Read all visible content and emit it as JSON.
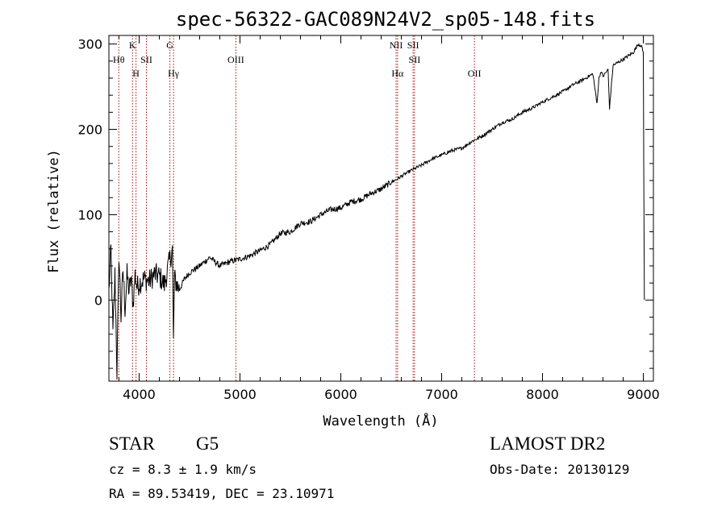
{
  "chart_data": {
    "type": "line",
    "title": "spec-56322-GAC089N24V2_sp05-148.fits",
    "xlabel": "Wavelength (Å)",
    "ylabel": "Flux (relative)",
    "xlim": [
      3700,
      9100
    ],
    "ylim": [
      -95,
      310
    ],
    "xticks": [
      4000,
      5000,
      6000,
      7000,
      8000,
      9000
    ],
    "xtick_labels": [
      "4000",
      "5000",
      "6000",
      "7000",
      "8000",
      "9000"
    ],
    "yticks": [
      0,
      100,
      200,
      300
    ],
    "ytick_labels": [
      "0",
      "100",
      "200",
      "300"
    ],
    "series": [
      {
        "name": "flux",
        "x": [
          3700,
          3720,
          3740,
          3760,
          3780,
          3800,
          3820,
          3840,
          3860,
          3880,
          3900,
          3920,
          3940,
          3960,
          3980,
          4000,
          4050,
          4100,
          4150,
          4200,
          4250,
          4300,
          4330,
          4340,
          4350,
          4400,
          4450,
          4500,
          4600,
          4700,
          4800,
          4900,
          5000,
          5100,
          5200,
          5300,
          5400,
          5500,
          5600,
          5700,
          5800,
          5900,
          6000,
          6100,
          6200,
          6300,
          6400,
          6500,
          6563,
          6600,
          6700,
          6800,
          6900,
          7000,
          7100,
          7200,
          7300,
          7400,
          7500,
          7600,
          7700,
          7800,
          7900,
          8000,
          8100,
          8200,
          8300,
          8400,
          8500,
          8540,
          8560,
          8580,
          8600,
          8650,
          8665,
          8700,
          8800,
          8900,
          8950,
          8980,
          9000,
          9010
        ],
        "values": [
          10,
          60,
          -40,
          30,
          -85,
          55,
          -20,
          35,
          -10,
          30,
          10,
          25,
          -5,
          30,
          15,
          20,
          25,
          22,
          30,
          28,
          18,
          45,
          60,
          -50,
          25,
          12,
          25,
          32,
          40,
          50,
          40,
          45,
          48,
          52,
          58,
          65,
          78,
          80,
          90,
          92,
          100,
          106,
          108,
          115,
          118,
          125,
          130,
          138,
          142,
          145,
          152,
          158,
          165,
          170,
          175,
          178,
          186,
          192,
          200,
          208,
          212,
          220,
          225,
          232,
          238,
          244,
          252,
          258,
          265,
          230,
          260,
          268,
          262,
          270,
          225,
          275,
          282,
          290,
          300,
          298,
          290,
          0
        ]
      }
    ],
    "lines": [
      {
        "label": "Hθ",
        "wavelength": 3798,
        "row": 1
      },
      {
        "label": "K",
        "wavelength": 3934,
        "row": 0
      },
      {
        "label": "H",
        "wavelength": 3969,
        "row": 2
      },
      {
        "label": "SII",
        "wavelength": 4072,
        "row": 1
      },
      {
        "label": "G",
        "wavelength": 4305,
        "row": 0
      },
      {
        "label": "Hγ",
        "wavelength": 4341,
        "row": 2
      },
      {
        "label": "OIII",
        "wavelength": 4959,
        "row": 1
      },
      {
        "label": "NII",
        "wavelength": 6548,
        "row": 0
      },
      {
        "label": "Hα",
        "wavelength": 6563,
        "row": 2
      },
      {
        "label": "SII",
        "wavelength": 6717,
        "row": 0
      },
      {
        "label": "SII",
        "wavelength": 6731,
        "row": 1
      },
      {
        "label": "OII",
        "wavelength": 7325,
        "row": 2
      }
    ],
    "line_color": "#a01010",
    "grid": false
  },
  "info": {
    "object_class": "STAR",
    "subclass": "G5",
    "survey": "LAMOST DR2",
    "cz": "cz = 8.3 ± 1.9 km/s",
    "obs_date": "Obs-Date: 20130129",
    "coords": "RA =  89.53419, DEC =  23.10971"
  }
}
